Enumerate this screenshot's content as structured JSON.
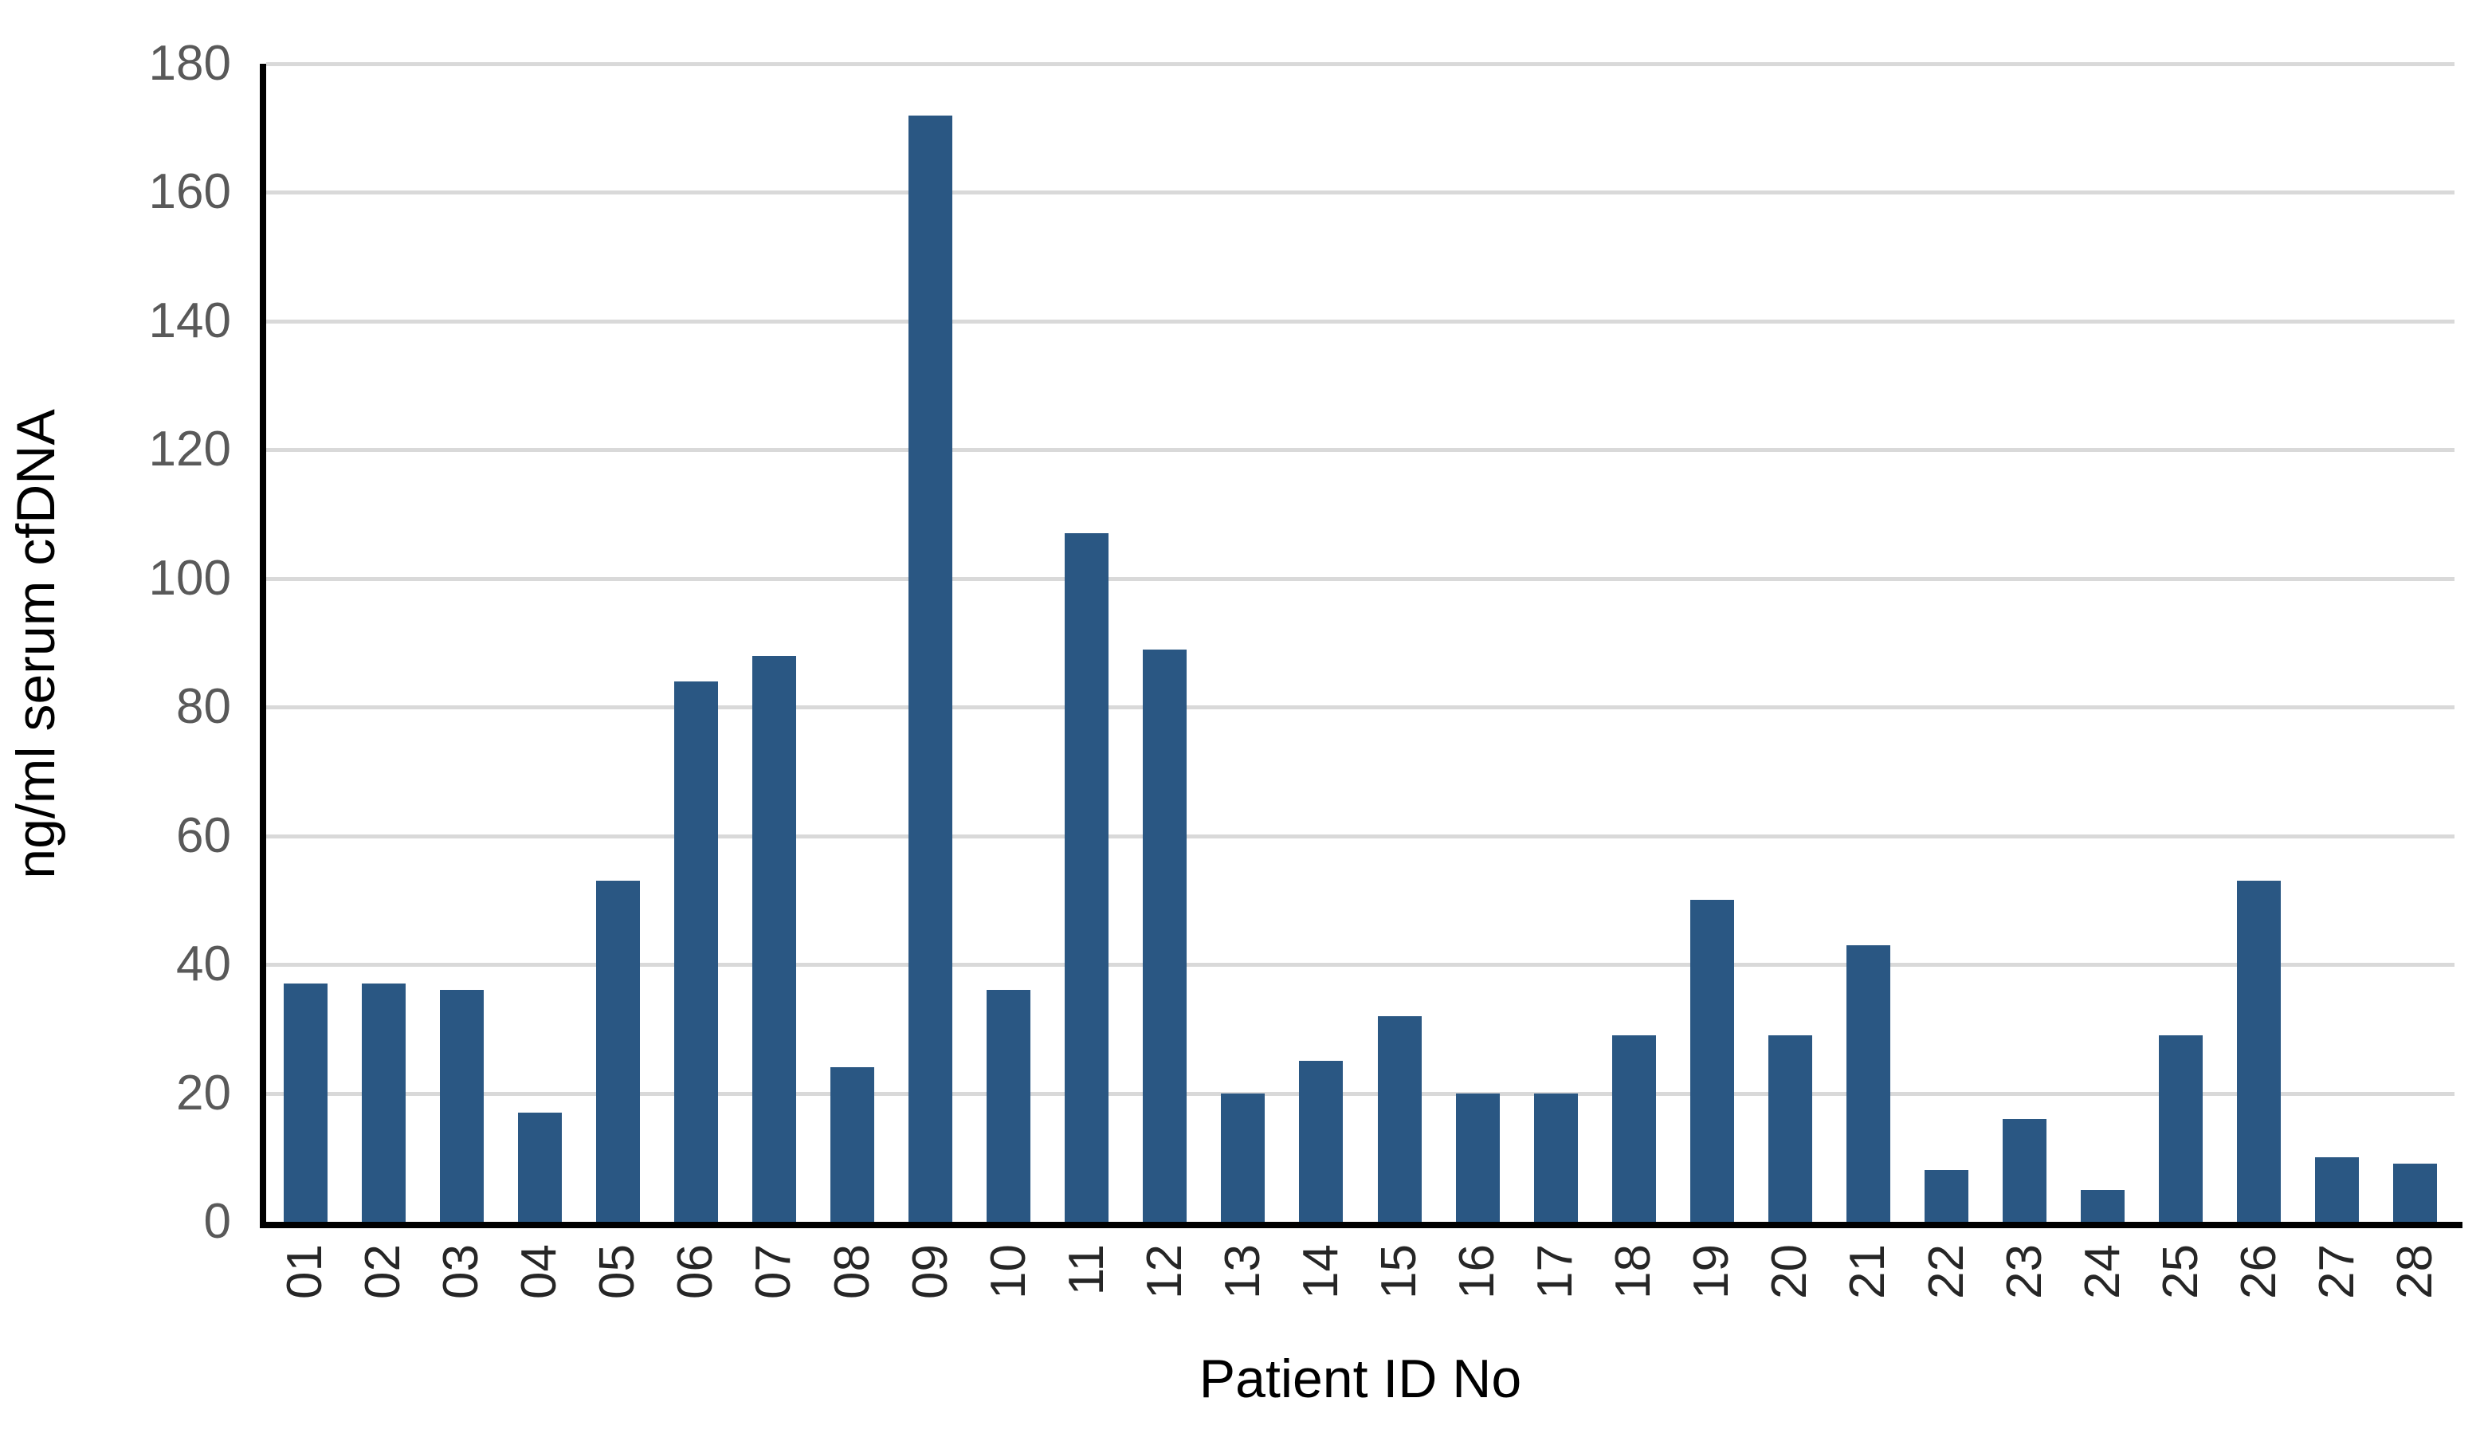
{
  "chart_data": {
    "type": "bar",
    "title": "",
    "categories": [
      "01",
      "02",
      "03",
      "04",
      "05",
      "06",
      "07",
      "08",
      "09",
      "10",
      "11",
      "12",
      "13",
      "14",
      "15",
      "16",
      "17",
      "18",
      "19",
      "20",
      "21",
      "22",
      "23",
      "24",
      "25",
      "26",
      "27",
      "28"
    ],
    "values": [
      37,
      37,
      36,
      17,
      53,
      84,
      88,
      24,
      172,
      36,
      107,
      89,
      20,
      25,
      32,
      20,
      20,
      29,
      50,
      29,
      43,
      8,
      16,
      5,
      29,
      53,
      10,
      9
    ],
    "xlabel": "Patient ID No",
    "ylabel": "ng/ml serum cfDNA",
    "ylim": [
      0,
      180
    ],
    "y_ticks": [
      0,
      20,
      40,
      60,
      80,
      100,
      120,
      140,
      160,
      180
    ],
    "grid": true,
    "legend_position": "none",
    "bar_color": "#2A5783",
    "gridline_color": "#D9D9D9",
    "axis_line_color": "#000000",
    "y_tick_label_color": "#595959",
    "x_tick_label_color": "#262626",
    "background_color": "#FFFFFF"
  }
}
